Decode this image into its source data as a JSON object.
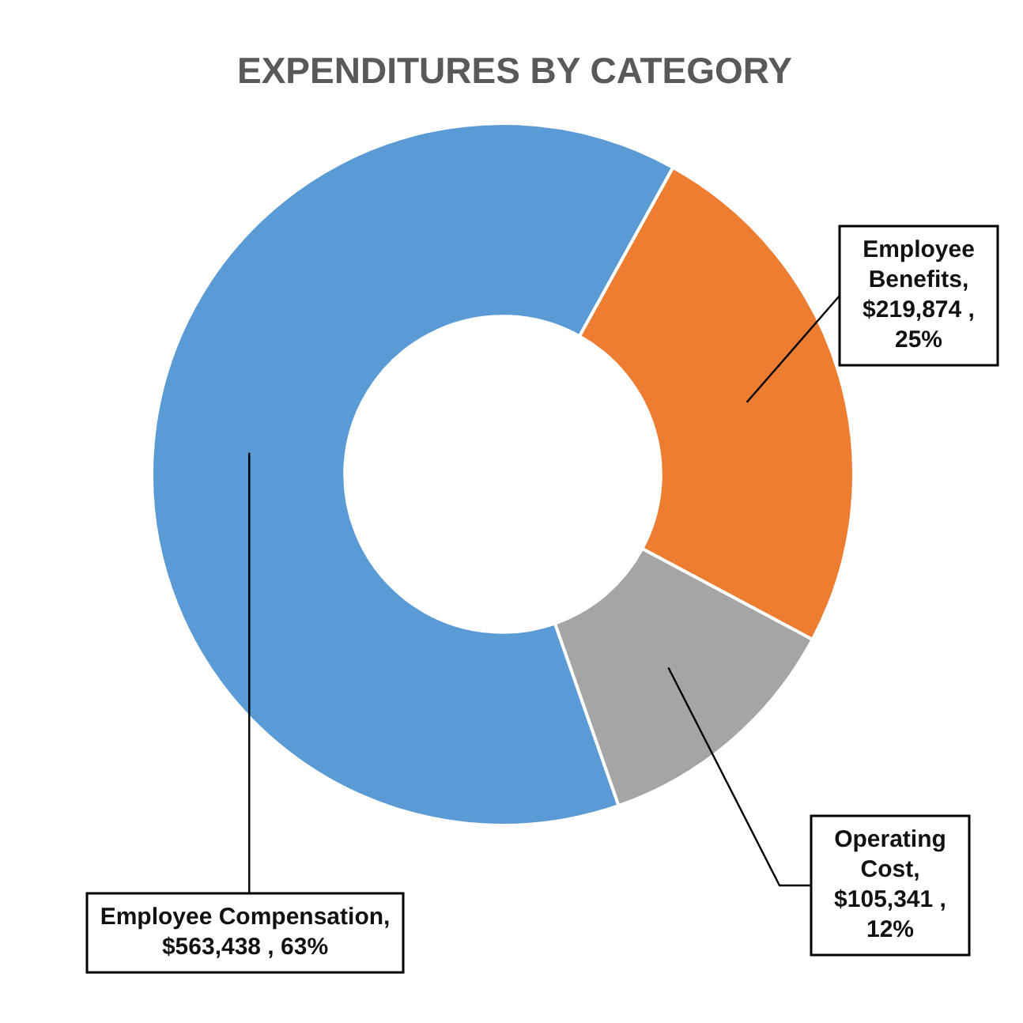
{
  "chart_data": {
    "type": "donut",
    "title": "EXPENDITURES BY CATEGORY",
    "categories": [
      "Employee Benefits",
      "Operating Cost",
      "Employee Compensation"
    ],
    "values": [
      219874,
      105341,
      563438
    ],
    "colors": [
      "#ed7d31",
      "#a5a5a5",
      "#5b9bd5"
    ],
    "value_labels": [
      ", $219,874 , 25%",
      ", $105,341 , 12%",
      ", $563,438 , 63%"
    ],
    "legend": false
  }
}
